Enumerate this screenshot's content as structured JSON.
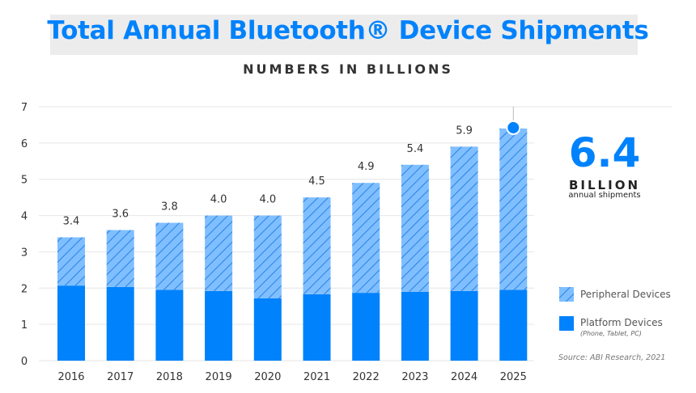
{
  "title": "Total Annual Bluetooth® Device Shipments",
  "subtitle": "NUMBERS IN BILLIONS",
  "highlight": {
    "value": "6.4",
    "unit": "BILLION",
    "caption": "annual shipments"
  },
  "legend": {
    "peripheral": "Peripheral Devices",
    "platform": "Platform Devices",
    "platform_note": "(Phone, Tablet, PC)"
  },
  "source": "Source: ABI Research, 2021",
  "colors": {
    "platform": "#0082fc",
    "peripheral": "#80bfff",
    "hatch": "#2e86e6",
    "grid": "#e6e6e6"
  },
  "chart_data": {
    "type": "bar",
    "stacked": true,
    "title": "Total Annual Bluetooth® Device Shipments",
    "subtitle": "NUMBERS IN BILLIONS",
    "xlabel": "",
    "ylabel": "",
    "ylim": [
      0,
      7
    ],
    "yticks": [
      "0",
      "1",
      "2",
      "3",
      "4",
      "5",
      "6",
      "7"
    ],
    "grid": true,
    "legend_position": "bottom-right",
    "categories": [
      "2016",
      "2017",
      "2018",
      "2019",
      "2020",
      "2021",
      "2022",
      "2023",
      "2024",
      "2025"
    ],
    "totals": [
      "3.4",
      "3.6",
      "3.8",
      "4.0",
      "4.0",
      "4.5",
      "4.9",
      "5.4",
      "5.9",
      "6.4"
    ],
    "series": [
      {
        "name": "Platform Devices",
        "values": [
          2.07,
          2.03,
          1.95,
          1.92,
          1.72,
          1.83,
          1.87,
          1.9,
          1.92,
          1.95
        ]
      },
      {
        "name": "Peripheral Devices",
        "values": [
          1.33,
          1.57,
          1.85,
          2.08,
          2.28,
          2.67,
          3.03,
          3.5,
          3.98,
          4.45
        ]
      }
    ]
  }
}
